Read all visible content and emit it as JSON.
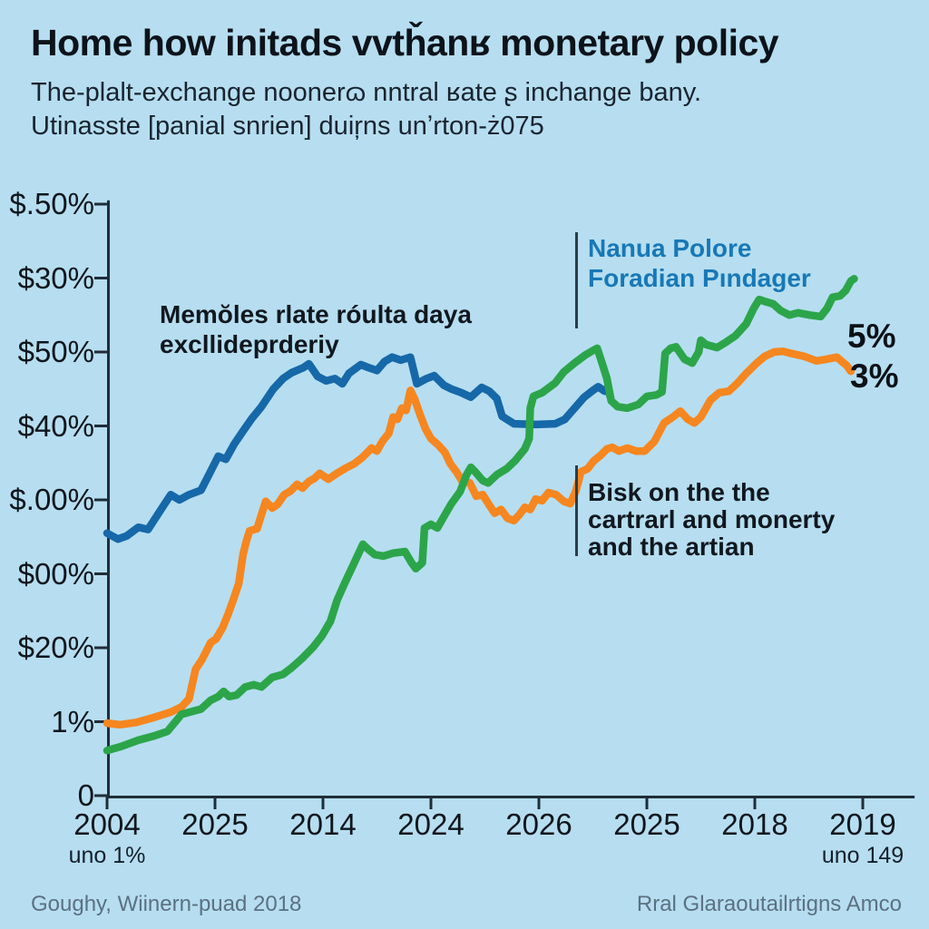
{
  "header": {
    "title": "Home how initads vvtȟanʁ monetary policy",
    "subtitle": "The-plalt-exchange noonerɷ nntral ʁate ʂ inchange bany.\nUtinasste [panial snrien] duiŗns unʼrton-ż075"
  },
  "annotations": {
    "series_note_blue": {
      "text": "Nanua Polore\nForadian Pındager"
    },
    "note_left": {
      "text": "Memŏles rlate róulta daya\nexcllideprderiy"
    },
    "note_right": {
      "text": "Bisk on the the\ncartrarl and monerty\nand the artian"
    },
    "end_value_top": "5%",
    "end_value_bottom": "3%"
  },
  "footer": {
    "left": "Goughy, Wiinern-puad 2018",
    "right": "Rral Glaraoutailrtigns Amco"
  },
  "colors": {
    "background": "#b6def0",
    "axis": "#1f2d38",
    "title_text": "#0c131a",
    "annotation_blue": "#1878b6",
    "footer_text": "#5b7181",
    "series_blue": "#1668a8",
    "series_orange": "#f6861f",
    "series_green": "#2ca54a"
  },
  "chart_data": {
    "type": "line",
    "title": "Home how initads vvtȟanʁ monetary policy",
    "xlabel": "",
    "ylabel": "",
    "grid": false,
    "legend_position": "annotations-inline",
    "xlim": [
      0,
      7.48
    ],
    "ylim": [
      0,
      8.05
    ],
    "x_tick_labels": [
      "2004",
      "2025",
      "2014",
      "2024",
      "2026",
      "2025",
      "2018",
      "2019"
    ],
    "x_sub_labels": [
      {
        "tick": 0,
        "text": "uno 1%"
      },
      {
        "tick": 7,
        "text": "uno 149"
      }
    ],
    "y_tick_labels": [
      "0",
      "1%",
      "$20%",
      "$00%",
      "$.00%",
      "$40%",
      "$50%",
      "$30%",
      "$.50%"
    ],
    "layout": {
      "plot": {
        "x0": 118,
        "y0": 877,
        "x_step": 119,
        "y_step": 81.5
      }
    },
    "series": [
      {
        "id": "blue",
        "label": "Nanua Polore Foradian Pındager",
        "color": "#1668a8",
        "points": [
          [
            0,
            3.55
          ],
          [
            0.1,
            3.47
          ],
          [
            0.18,
            3.51
          ],
          [
            0.29,
            3.63
          ],
          [
            0.38,
            3.6
          ],
          [
            0.5,
            3.87
          ],
          [
            0.59,
            4.07
          ],
          [
            0.67,
            4
          ],
          [
            0.76,
            4.07
          ],
          [
            0.87,
            4.13
          ],
          [
            0.95,
            4.36
          ],
          [
            1.03,
            4.59
          ],
          [
            1.1,
            4.55
          ],
          [
            1.18,
            4.76
          ],
          [
            1.26,
            4.93
          ],
          [
            1.34,
            5.1
          ],
          [
            1.43,
            5.26
          ],
          [
            1.54,
            5.5
          ],
          [
            1.63,
            5.64
          ],
          [
            1.71,
            5.72
          ],
          [
            1.82,
            5.79
          ],
          [
            1.87,
            5.84
          ],
          [
            1.95,
            5.67
          ],
          [
            2.03,
            5.61
          ],
          [
            2.11,
            5.64
          ],
          [
            2.18,
            5.57
          ],
          [
            2.24,
            5.71
          ],
          [
            2.35,
            5.83
          ],
          [
            2.42,
            5.79
          ],
          [
            2.5,
            5.75
          ],
          [
            2.57,
            5.87
          ],
          [
            2.64,
            5.93
          ],
          [
            2.72,
            5.89
          ],
          [
            2.81,
            5.93
          ],
          [
            2.87,
            5.57
          ],
          [
            2.96,
            5.64
          ],
          [
            3.03,
            5.68
          ],
          [
            3.12,
            5.55
          ],
          [
            3.19,
            5.5
          ],
          [
            3.28,
            5.45
          ],
          [
            3.37,
            5.39
          ],
          [
            3.47,
            5.52
          ],
          [
            3.54,
            5.47
          ],
          [
            3.61,
            5.37
          ],
          [
            3.66,
            5.13
          ],
          [
            3.77,
            5.03
          ],
          [
            3.97,
            5.02
          ],
          [
            4.15,
            5.03
          ],
          [
            4.24,
            5.09
          ],
          [
            4.33,
            5.24
          ],
          [
            4.42,
            5.39
          ],
          [
            4.5,
            5.48
          ],
          [
            4.55,
            5.53
          ],
          [
            4.61,
            5.47
          ],
          [
            4.64,
            5.52
          ],
          [
            4.66,
            5.4
          ]
        ]
      },
      {
        "id": "orange",
        "label": "3%",
        "color": "#f6861f",
        "points": [
          [
            0,
            0.98
          ],
          [
            0.12,
            0.96
          ],
          [
            0.27,
            0.99
          ],
          [
            0.44,
            1.06
          ],
          [
            0.59,
            1.13
          ],
          [
            0.69,
            1.2
          ],
          [
            0.76,
            1.31
          ],
          [
            0.82,
            1.71
          ],
          [
            0.88,
            1.84
          ],
          [
            0.96,
            2.07
          ],
          [
            1.01,
            2.12
          ],
          [
            1.07,
            2.27
          ],
          [
            1.12,
            2.45
          ],
          [
            1.17,
            2.65
          ],
          [
            1.22,
            2.87
          ],
          [
            1.26,
            3.26
          ],
          [
            1.29,
            3.44
          ],
          [
            1.32,
            3.58
          ],
          [
            1.39,
            3.61
          ],
          [
            1.43,
            3.8
          ],
          [
            1.47,
            3.98
          ],
          [
            1.53,
            3.89
          ],
          [
            1.58,
            3.94
          ],
          [
            1.64,
            4.07
          ],
          [
            1.7,
            4.12
          ],
          [
            1.76,
            4.21
          ],
          [
            1.81,
            4.16
          ],
          [
            1.87,
            4.25
          ],
          [
            1.92,
            4.29
          ],
          [
            1.97,
            4.36
          ],
          [
            2.05,
            4.28
          ],
          [
            2.13,
            4.36
          ],
          [
            2.21,
            4.43
          ],
          [
            2.29,
            4.49
          ],
          [
            2.37,
            4.58
          ],
          [
            2.45,
            4.7
          ],
          [
            2.5,
            4.66
          ],
          [
            2.55,
            4.79
          ],
          [
            2.61,
            4.9
          ],
          [
            2.65,
            5.12
          ],
          [
            2.69,
            5.09
          ],
          [
            2.73,
            5.24
          ],
          [
            2.77,
            5.21
          ],
          [
            2.81,
            5.48
          ],
          [
            2.85,
            5.36
          ],
          [
            2.9,
            5.15
          ],
          [
            2.95,
            4.96
          ],
          [
            3,
            4.83
          ],
          [
            3.07,
            4.74
          ],
          [
            3.13,
            4.64
          ],
          [
            3.18,
            4.49
          ],
          [
            3.24,
            4.37
          ],
          [
            3.29,
            4.25
          ],
          [
            3.36,
            4.23
          ],
          [
            3.42,
            4.05
          ],
          [
            3.48,
            4.07
          ],
          [
            3.54,
            3.93
          ],
          [
            3.59,
            3.82
          ],
          [
            3.65,
            3.87
          ],
          [
            3.71,
            3.75
          ],
          [
            3.77,
            3.72
          ],
          [
            3.82,
            3.8
          ],
          [
            3.87,
            3.9
          ],
          [
            3.92,
            3.87
          ],
          [
            3.97,
            4.01
          ],
          [
            4.03,
            3.99
          ],
          [
            4.09,
            4.1
          ],
          [
            4.16,
            4.07
          ],
          [
            4.23,
            3.98
          ],
          [
            4.29,
            3.95
          ],
          [
            4.34,
            4.11
          ],
          [
            4.39,
            4.38
          ],
          [
            4.45,
            4.42
          ],
          [
            4.51,
            4.53
          ],
          [
            4.57,
            4.6
          ],
          [
            4.63,
            4.69
          ],
          [
            4.68,
            4.71
          ],
          [
            4.74,
            4.66
          ],
          [
            4.82,
            4.7
          ],
          [
            4.9,
            4.66
          ],
          [
            4.98,
            4.66
          ],
          [
            5.07,
            4.79
          ],
          [
            5.16,
            5.04
          ],
          [
            5.24,
            5.12
          ],
          [
            5.31,
            5.2
          ],
          [
            5.38,
            5.09
          ],
          [
            5.44,
            5.04
          ],
          [
            5.5,
            5.12
          ],
          [
            5.59,
            5.35
          ],
          [
            5.67,
            5.45
          ],
          [
            5.76,
            5.47
          ],
          [
            5.84,
            5.58
          ],
          [
            5.92,
            5.71
          ],
          [
            6.01,
            5.84
          ],
          [
            6.09,
            5.94
          ],
          [
            6.18,
            6
          ],
          [
            6.26,
            6.01
          ],
          [
            6.34,
            5.98
          ],
          [
            6.46,
            5.94
          ],
          [
            6.57,
            5.88
          ],
          [
            6.66,
            5.9
          ],
          [
            6.76,
            5.93
          ],
          [
            6.85,
            5.82
          ],
          [
            6.89,
            5.74
          ]
        ]
      },
      {
        "id": "green",
        "label": "5%",
        "color": "#2ca54a",
        "points": [
          [
            0,
            0.61
          ],
          [
            0.14,
            0.67
          ],
          [
            0.29,
            0.75
          ],
          [
            0.44,
            0.81
          ],
          [
            0.56,
            0.87
          ],
          [
            0.69,
            1.1
          ],
          [
            0.79,
            1.14
          ],
          [
            0.87,
            1.17
          ],
          [
            0.96,
            1.29
          ],
          [
            1.03,
            1.34
          ],
          [
            1.08,
            1.41
          ],
          [
            1.13,
            1.34
          ],
          [
            1.2,
            1.36
          ],
          [
            1.28,
            1.47
          ],
          [
            1.36,
            1.5
          ],
          [
            1.43,
            1.47
          ],
          [
            1.53,
            1.6
          ],
          [
            1.63,
            1.64
          ],
          [
            1.71,
            1.73
          ],
          [
            1.81,
            1.86
          ],
          [
            1.91,
            2.01
          ],
          [
            1.99,
            2.16
          ],
          [
            2.07,
            2.36
          ],
          [
            2.13,
            2.64
          ],
          [
            2.2,
            2.87
          ],
          [
            2.29,
            3.15
          ],
          [
            2.37,
            3.4
          ],
          [
            2.42,
            3.33
          ],
          [
            2.48,
            3.26
          ],
          [
            2.56,
            3.24
          ],
          [
            2.65,
            3.28
          ],
          [
            2.76,
            3.3
          ],
          [
            2.82,
            3.15
          ],
          [
            2.86,
            3.07
          ],
          [
            2.92,
            3.15
          ],
          [
            2.94,
            3.62
          ],
          [
            3,
            3.67
          ],
          [
            3.06,
            3.62
          ],
          [
            3.13,
            3.8
          ],
          [
            3.19,
            3.95
          ],
          [
            3.27,
            4.11
          ],
          [
            3.33,
            4.34
          ],
          [
            3.37,
            4.44
          ],
          [
            3.41,
            4.38
          ],
          [
            3.48,
            4.26
          ],
          [
            3.53,
            4.23
          ],
          [
            3.61,
            4.34
          ],
          [
            3.7,
            4.42
          ],
          [
            3.78,
            4.53
          ],
          [
            3.87,
            4.69
          ],
          [
            3.91,
            4.83
          ],
          [
            3.92,
            5.24
          ],
          [
            3.95,
            5.4
          ],
          [
            4.03,
            5.45
          ],
          [
            4.15,
            5.58
          ],
          [
            4.23,
            5.73
          ],
          [
            4.33,
            5.85
          ],
          [
            4.43,
            5.96
          ],
          [
            4.5,
            6.02
          ],
          [
            4.54,
            6.05
          ],
          [
            4.59,
            5.83
          ],
          [
            4.63,
            5.64
          ],
          [
            4.67,
            5.34
          ],
          [
            4.73,
            5.26
          ],
          [
            4.82,
            5.24
          ],
          [
            4.92,
            5.29
          ],
          [
            5,
            5.4
          ],
          [
            5.09,
            5.42
          ],
          [
            5.14,
            5.46
          ],
          [
            5.17,
            5.98
          ],
          [
            5.22,
            6.05
          ],
          [
            5.27,
            6.07
          ],
          [
            5.35,
            5.9
          ],
          [
            5.42,
            5.85
          ],
          [
            5.48,
            6
          ],
          [
            5.5,
            6.16
          ],
          [
            5.55,
            6.1
          ],
          [
            5.65,
            6.06
          ],
          [
            5.73,
            6.13
          ],
          [
            5.82,
            6.22
          ],
          [
            5.92,
            6.38
          ],
          [
            5.99,
            6.59
          ],
          [
            6.04,
            6.71
          ],
          [
            6.08,
            6.69
          ],
          [
            6.17,
            6.65
          ],
          [
            6.24,
            6.56
          ],
          [
            6.32,
            6.5
          ],
          [
            6.4,
            6.53
          ],
          [
            6.51,
            6.5
          ],
          [
            6.61,
            6.48
          ],
          [
            6.67,
            6.59
          ],
          [
            6.72,
            6.74
          ],
          [
            6.79,
            6.76
          ],
          [
            6.84,
            6.83
          ],
          [
            6.89,
            6.96
          ],
          [
            6.92,
            6.99
          ]
        ]
      }
    ]
  }
}
